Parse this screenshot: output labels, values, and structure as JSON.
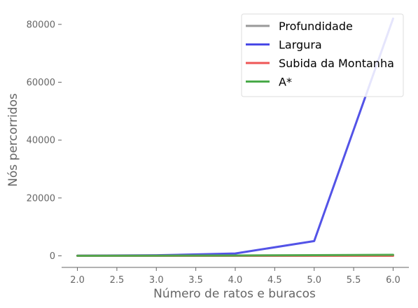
{
  "chart_data": {
    "type": "line",
    "xlabel": "Número de ratos e buracos",
    "ylabel": "Nós percorridos",
    "xlim": [
      1.8,
      6.2
    ],
    "ylim": [
      -4000,
      86000
    ],
    "x_ticks": [
      "2.0",
      "2.5",
      "3.0",
      "3.5",
      "4.0",
      "4.5",
      "5.0",
      "5.5",
      "6.0"
    ],
    "x_tick_values": [
      2.0,
      2.5,
      3.0,
      3.5,
      4.0,
      4.5,
      5.0,
      5.5,
      6.0
    ],
    "y_ticks": [
      "0",
      "20000",
      "40000",
      "60000",
      "80000"
    ],
    "y_tick_values": [
      0,
      20000,
      40000,
      60000,
      80000
    ],
    "x": [
      2,
      3,
      4,
      5,
      6
    ],
    "legend_position": "top-right",
    "grid": false,
    "series": [
      {
        "name": "Profundidade",
        "color": "#999999",
        "values": [
          10,
          20,
          30,
          40,
          50
        ]
      },
      {
        "name": "Largura",
        "color": "#4a4ae6",
        "values": [
          50,
          200,
          800,
          5100,
          82000
        ]
      },
      {
        "name": "Subida da Montanha",
        "color": "#ee5555",
        "values": [
          10,
          15,
          20,
          25,
          30
        ]
      },
      {
        "name": "A*",
        "color": "#4aaa4a",
        "values": [
          20,
          60,
          120,
          220,
          350
        ]
      }
    ]
  }
}
